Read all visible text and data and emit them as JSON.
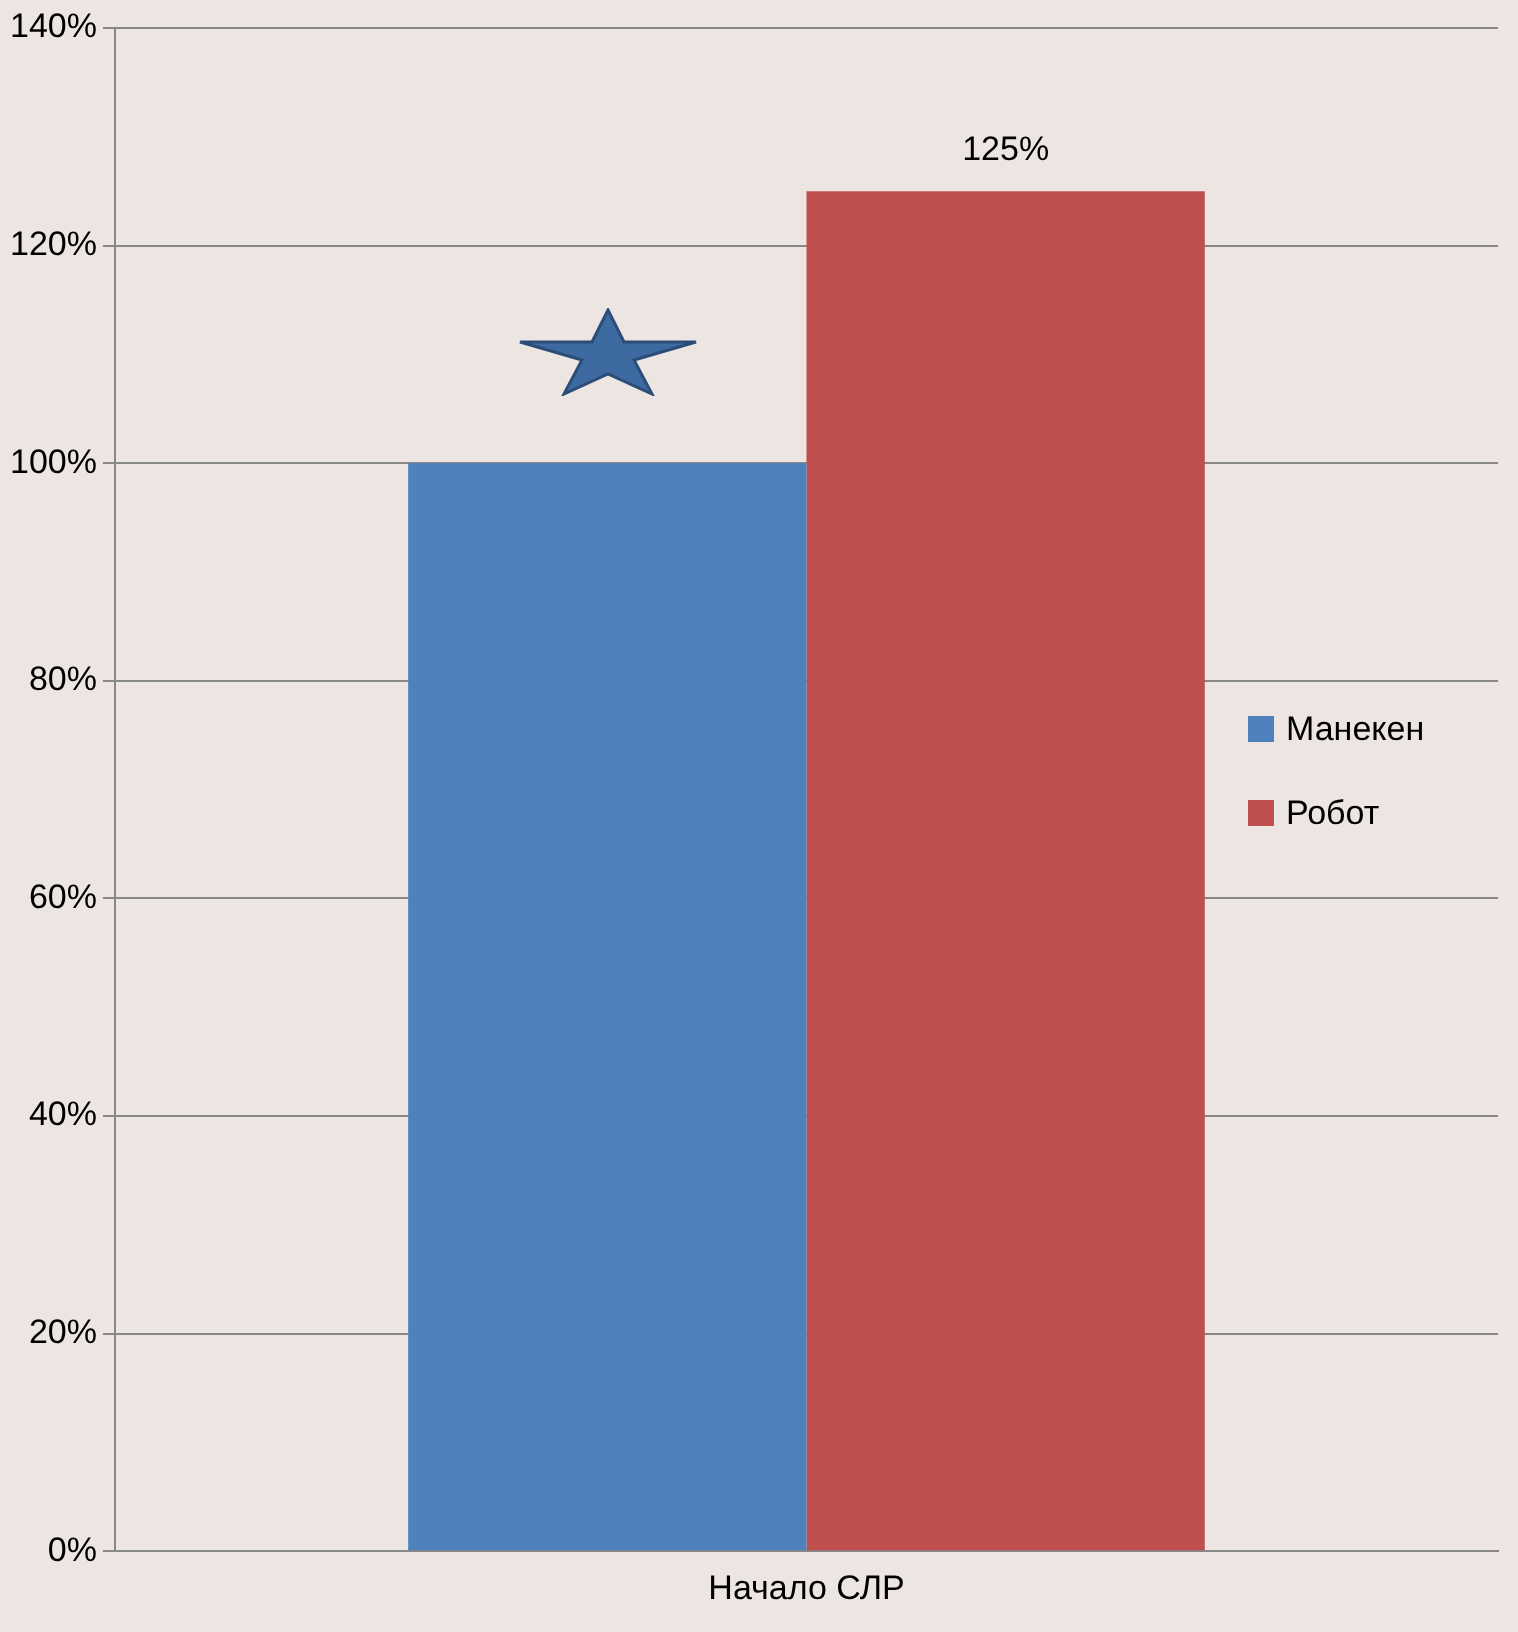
{
  "chart_data": {
    "type": "bar",
    "categories": [
      "Начало СЛР"
    ],
    "series": [
      {
        "name": "Манекен",
        "color": "#4f81bd",
        "values": [
          100
        ]
      },
      {
        "name": "Робот",
        "color": "#c0504d",
        "values": [
          125
        ],
        "value_labels": [
          "125%"
        ]
      }
    ],
    "ylim": [
      0,
      140
    ],
    "yticks": [
      {
        "value": 0,
        "label": "0%"
      },
      {
        "value": 20,
        "label": "20%"
      },
      {
        "value": 40,
        "label": "40%"
      },
      {
        "value": 60,
        "label": "60%"
      },
      {
        "value": 80,
        "label": "80%"
      },
      {
        "value": 100,
        "label": "100%"
      },
      {
        "value": 120,
        "label": "120%"
      },
      {
        "value": 140,
        "label": "140%"
      }
    ],
    "grid": "y",
    "legend": "right"
  }
}
